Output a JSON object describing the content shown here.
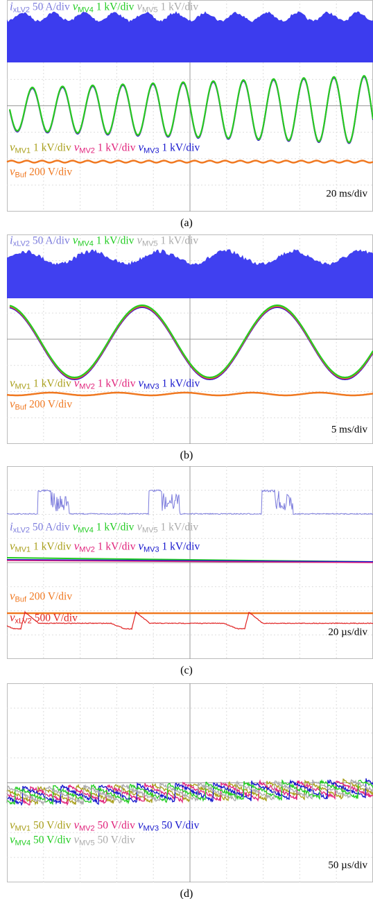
{
  "figure": {
    "panels": [
      {
        "caption": "(a)",
        "timebase": "20 ms/div",
        "labels": [
          [
            {
              "symbol": "i",
              "subscript": "xLV2",
              "scale": "50 A/div",
              "color": "#7b7bdc"
            },
            {
              "symbol": "v",
              "subscript": "MV4",
              "scale": "1 kV/div",
              "color": "#22cc22"
            },
            {
              "symbol": "v",
              "subscript": "MV5",
              "scale": "1 kV/div",
              "color": "#aaaaaa"
            }
          ],
          [
            {
              "symbol": "v",
              "subscript": "MV1",
              "scale": "1 kV/div",
              "color": "#a89e18"
            },
            {
              "symbol": "v",
              "subscript": "MV2",
              "scale": "1 kV/div",
              "color": "#e0207a"
            },
            {
              "symbol": "v",
              "subscript": "MV3",
              "scale": "1 kV/div",
              "color": "#1414cc"
            }
          ],
          [
            {
              "symbol": "v",
              "subscript": "Buf",
              "scale": "200 V/div",
              "color": "#f07820"
            }
          ]
        ]
      },
      {
        "caption": "(b)",
        "timebase": "5 ms/div",
        "labels": [
          [
            {
              "symbol": "i",
              "subscript": "xLV2",
              "scale": "50 A/div",
              "color": "#7b7bdc"
            },
            {
              "symbol": "v",
              "subscript": "MV4",
              "scale": "1 kV/div",
              "color": "#22cc22"
            },
            {
              "symbol": "v",
              "subscript": "MV5",
              "scale": "1 kV/div",
              "color": "#aaaaaa"
            }
          ],
          [
            {
              "symbol": "v",
              "subscript": "MV1",
              "scale": "1 kV/div",
              "color": "#a89e18"
            },
            {
              "symbol": "v",
              "subscript": "MV2",
              "scale": "1 kV/div",
              "color": "#e0207a"
            },
            {
              "symbol": "v",
              "subscript": "MV3",
              "scale": "1 kV/div",
              "color": "#1414cc"
            }
          ],
          [
            {
              "symbol": "v",
              "subscript": "Buf",
              "scale": "200 V/div",
              "color": "#f07820"
            }
          ]
        ]
      },
      {
        "caption": "(c)",
        "timebase": "20 µs/div",
        "labels": [
          [
            {
              "symbol": "i",
              "subscript": "xLV2",
              "scale": "50 A/div",
              "color": "#7b7bdc"
            },
            {
              "symbol": "v",
              "subscript": "MV4",
              "scale": "1 kV/div",
              "color": "#22cc22"
            },
            {
              "symbol": "v",
              "subscript": "MV5",
              "scale": "1 kV/div",
              "color": "#aaaaaa"
            }
          ],
          [
            {
              "symbol": "v",
              "subscript": "MV1",
              "scale": "1 kV/div",
              "color": "#a89e18"
            },
            {
              "symbol": "v",
              "subscript": "MV2",
              "scale": "1 kV/div",
              "color": "#e0207a"
            },
            {
              "symbol": "v",
              "subscript": "MV3",
              "scale": "1 kV/div",
              "color": "#1414cc"
            }
          ],
          [
            {
              "symbol": "v",
              "subscript": "Buf",
              "scale": "200 V/div",
              "color": "#f07820"
            }
          ],
          [
            {
              "symbol": "v",
              "subscript": "xLV2",
              "scale": "500 V/div",
              "color": "#e02020"
            }
          ]
        ]
      },
      {
        "caption": "(d)",
        "timebase": "50 µs/div",
        "labels": [
          [
            {
              "symbol": "v",
              "subscript": "MV1",
              "scale": "50 V/div",
              "color": "#a89e18"
            },
            {
              "symbol": "v",
              "subscript": "MV2",
              "scale": "50 V/div",
              "color": "#e0207a"
            },
            {
              "symbol": "v",
              "subscript": "MV3",
              "scale": "50 V/div",
              "color": "#1414cc"
            }
          ],
          [
            {
              "symbol": "v",
              "subscript": "MV4",
              "scale": "50 V/div",
              "color": "#22cc22"
            },
            {
              "symbol": "v",
              "subscript": "MV5",
              "scale": "50 V/div",
              "color": "#aaaaaa"
            }
          ]
        ]
      }
    ]
  }
}
